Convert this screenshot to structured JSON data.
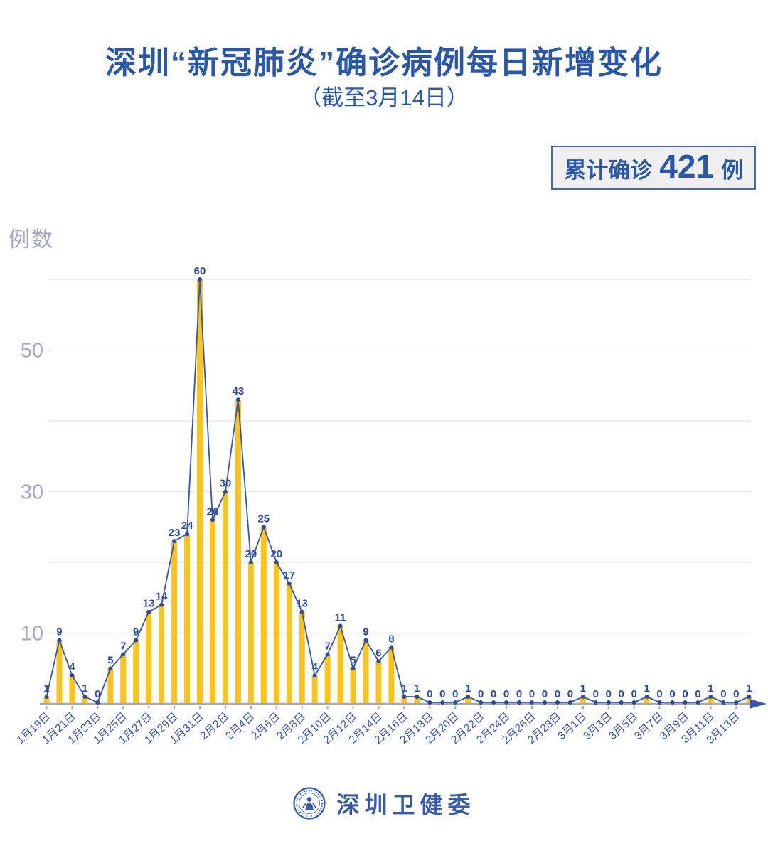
{
  "header": {
    "title": "深圳“新冠肺炎”确诊病例每日新增变化",
    "subtitle": "（截至3月14日）"
  },
  "summary_badge": {
    "label": "累计确诊",
    "value": "421",
    "unit": "例"
  },
  "chart_data": {
    "type": "bar",
    "overlay": "line",
    "title": "深圳“新冠肺炎”确诊病例每日新增变化",
    "ylabel": "例数",
    "xlabel": "",
    "ylim": [
      0,
      62
    ],
    "grid_step": 10,
    "y_ticks": [
      10,
      30,
      50
    ],
    "x_label_every": 2,
    "legend": "none",
    "categories": [
      "1月19日",
      "1月20日",
      "1月21日",
      "1月22日",
      "1月23日",
      "1月24日",
      "1月25日",
      "1月26日",
      "1月27日",
      "1月28日",
      "1月29日",
      "1月30日",
      "1月31日",
      "2月1日",
      "2月2日",
      "2月3日",
      "2月4日",
      "2月5日",
      "2月6日",
      "2月7日",
      "2月8日",
      "2月9日",
      "2月10日",
      "2月11日",
      "2月12日",
      "2月13日",
      "2月14日",
      "2月15日",
      "2月16日",
      "2月17日",
      "2月18日",
      "2月19日",
      "2月20日",
      "2月21日",
      "2月22日",
      "2月23日",
      "2月24日",
      "2月25日",
      "2月26日",
      "2月27日",
      "2月28日",
      "2月29日",
      "3月1日",
      "3月2日",
      "3月3日",
      "3月4日",
      "3月5日",
      "3月6日",
      "3月7日",
      "3月8日",
      "3月9日",
      "3月10日",
      "3月11日",
      "3月12日",
      "3月13日",
      "3月14日"
    ],
    "values": [
      1,
      9,
      4,
      1,
      0,
      5,
      7,
      9,
      13,
      14,
      23,
      24,
      60,
      26,
      30,
      43,
      20,
      25,
      20,
      17,
      13,
      4,
      7,
      11,
      5,
      9,
      6,
      8,
      1,
      1,
      0,
      0,
      0,
      1,
      0,
      0,
      0,
      0,
      0,
      0,
      0,
      0,
      1,
      0,
      0,
      0,
      0,
      1,
      0,
      0,
      0,
      0,
      1,
      0,
      0,
      1
    ],
    "colors": {
      "bar": "#fac41b",
      "line": "#3a55a4",
      "point": "#2e4a9d",
      "value_label": "#2e4a9d",
      "x_label": "#4156a0",
      "y_label": "#a3a8c6",
      "grid": "#e7e8f0",
      "axis": "#a9a9ae",
      "arrow": "#3a55a4"
    }
  },
  "footer": {
    "brand": "深圳卫健委",
    "logo": "shenzhen-health-commission-seal"
  }
}
